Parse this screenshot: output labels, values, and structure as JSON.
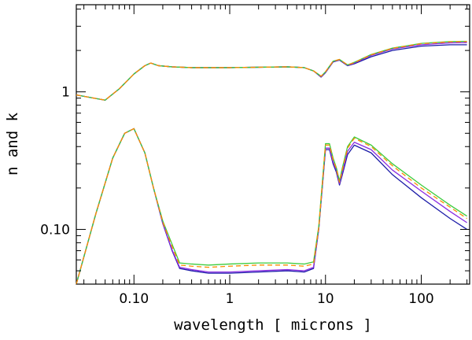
{
  "chart_data": {
    "type": "line",
    "title": "",
    "xlabel": "wavelength [ microns ]",
    "ylabel": "n and k",
    "xscale": "log",
    "yscale": "log",
    "xlim": [
      0.025,
      320
    ],
    "ylim": [
      0.04,
      4.3
    ],
    "x_ticks": [
      {
        "value": 0.1,
        "label": "0.10"
      },
      {
        "value": 1,
        "label": "1"
      },
      {
        "value": 10,
        "label": "10"
      },
      {
        "value": 100,
        "label": "100"
      }
    ],
    "y_ticks": [
      {
        "value": 0.1,
        "label": "0.10"
      },
      {
        "value": 1,
        "label": "1"
      }
    ],
    "grid": false,
    "legend": "none",
    "colors": {
      "navy": "#1c1ca8",
      "purple": "#8a2be2",
      "green": "#3ccc3c",
      "orange": "#ff8c00",
      "axis": "#000000"
    },
    "series": [
      {
        "name": "n (navy)",
        "color": "navy",
        "style": "solid",
        "x": [
          0.025,
          0.05,
          0.07,
          0.1,
          0.13,
          0.15,
          0.18,
          0.25,
          0.4,
          0.7,
          1,
          2,
          4,
          6,
          7.5,
          9,
          10,
          12,
          14,
          17,
          20,
          30,
          50,
          100,
          200,
          300
        ],
        "y": [
          0.95,
          0.87,
          1.05,
          1.35,
          1.55,
          1.62,
          1.55,
          1.52,
          1.5,
          1.5,
          1.5,
          1.51,
          1.52,
          1.5,
          1.42,
          1.28,
          1.38,
          1.65,
          1.7,
          1.55,
          1.6,
          1.8,
          2.0,
          2.15,
          2.2,
          2.2
        ]
      },
      {
        "name": "n (purple)",
        "color": "purple",
        "style": "solid",
        "x": [
          0.025,
          0.05,
          0.07,
          0.1,
          0.13,
          0.15,
          0.18,
          0.25,
          0.4,
          0.7,
          1,
          2,
          4,
          6,
          7.5,
          9,
          10,
          12,
          14,
          17,
          20,
          30,
          50,
          100,
          200,
          300
        ],
        "y": [
          0.95,
          0.87,
          1.05,
          1.35,
          1.55,
          1.62,
          1.55,
          1.52,
          1.5,
          1.5,
          1.5,
          1.51,
          1.52,
          1.5,
          1.42,
          1.29,
          1.39,
          1.66,
          1.71,
          1.56,
          1.62,
          1.84,
          2.05,
          2.2,
          2.27,
          2.28
        ]
      },
      {
        "name": "n (green)",
        "color": "green",
        "style": "solid",
        "x": [
          0.025,
          0.05,
          0.07,
          0.1,
          0.13,
          0.15,
          0.18,
          0.25,
          0.4,
          0.7,
          1,
          2,
          4,
          6,
          7.5,
          9,
          10,
          12,
          14,
          17,
          20,
          30,
          50,
          100,
          200,
          300
        ],
        "y": [
          0.95,
          0.87,
          1.05,
          1.35,
          1.55,
          1.62,
          1.55,
          1.52,
          1.5,
          1.5,
          1.5,
          1.51,
          1.52,
          1.5,
          1.42,
          1.3,
          1.4,
          1.67,
          1.72,
          1.57,
          1.64,
          1.87,
          2.08,
          2.25,
          2.32,
          2.33
        ]
      },
      {
        "name": "n (orange dashed)",
        "color": "orange",
        "style": "dashed",
        "x": [
          0.025,
          0.05,
          0.07,
          0.1,
          0.13,
          0.15,
          0.18,
          0.25,
          0.4,
          0.7,
          1,
          2,
          4,
          6,
          7.5,
          9,
          10,
          12,
          14,
          17,
          20,
          30,
          50,
          100,
          200,
          300
        ],
        "y": [
          0.95,
          0.87,
          1.05,
          1.35,
          1.55,
          1.62,
          1.55,
          1.52,
          1.5,
          1.5,
          1.5,
          1.51,
          1.52,
          1.5,
          1.42,
          1.3,
          1.4,
          1.67,
          1.72,
          1.57,
          1.63,
          1.86,
          2.07,
          2.24,
          2.31,
          2.32
        ]
      },
      {
        "name": "k (navy)",
        "color": "navy",
        "style": "solid",
        "x": [
          0.025,
          0.04,
          0.06,
          0.08,
          0.1,
          0.13,
          0.16,
          0.2,
          0.25,
          0.3,
          0.4,
          0.6,
          1,
          2,
          4,
          6,
          7.5,
          8.5,
          10,
          11,
          12,
          13,
          14,
          15,
          17,
          20,
          30,
          50,
          100,
          200,
          300
        ],
        "y": [
          0.04,
          0.13,
          0.33,
          0.5,
          0.54,
          0.36,
          0.2,
          0.11,
          0.07,
          0.052,
          0.05,
          0.048,
          0.048,
          0.049,
          0.05,
          0.049,
          0.052,
          0.1,
          0.38,
          0.38,
          0.3,
          0.26,
          0.21,
          0.25,
          0.35,
          0.41,
          0.36,
          0.25,
          0.17,
          0.12,
          0.1
        ]
      },
      {
        "name": "k (purple)",
        "color": "purple",
        "style": "solid",
        "x": [
          0.025,
          0.04,
          0.06,
          0.08,
          0.1,
          0.13,
          0.16,
          0.2,
          0.25,
          0.3,
          0.4,
          0.6,
          1,
          2,
          4,
          6,
          7.5,
          8.5,
          10,
          11,
          12,
          13,
          14,
          15,
          17,
          20,
          30,
          50,
          100,
          200,
          300
        ],
        "y": [
          0.04,
          0.13,
          0.33,
          0.5,
          0.54,
          0.36,
          0.2,
          0.111,
          0.071,
          0.053,
          0.051,
          0.049,
          0.049,
          0.05,
          0.051,
          0.05,
          0.053,
          0.101,
          0.39,
          0.39,
          0.31,
          0.27,
          0.215,
          0.26,
          0.37,
          0.43,
          0.38,
          0.27,
          0.19,
          0.135,
          0.112
        ]
      },
      {
        "name": "k (green)",
        "color": "green",
        "style": "solid",
        "x": [
          0.025,
          0.04,
          0.06,
          0.08,
          0.1,
          0.13,
          0.16,
          0.2,
          0.25,
          0.3,
          0.4,
          0.6,
          1,
          2,
          4,
          6,
          7.5,
          8.5,
          10,
          11,
          12,
          13,
          14,
          15,
          17,
          20,
          30,
          50,
          100,
          200,
          300
        ],
        "y": [
          0.04,
          0.13,
          0.33,
          0.5,
          0.54,
          0.36,
          0.2,
          0.115,
          0.078,
          0.057,
          0.056,
          0.055,
          0.056,
          0.057,
          0.057,
          0.056,
          0.058,
          0.105,
          0.42,
          0.42,
          0.33,
          0.28,
          0.225,
          0.28,
          0.4,
          0.47,
          0.41,
          0.3,
          0.21,
          0.15,
          0.125
        ]
      },
      {
        "name": "k (orange dashed)",
        "color": "orange",
        "style": "dashed",
        "x": [
          0.025,
          0.04,
          0.06,
          0.08,
          0.1,
          0.13,
          0.16,
          0.2,
          0.25,
          0.3,
          0.4,
          0.6,
          1,
          2,
          4,
          6,
          7.5,
          8.5,
          10,
          11,
          12,
          13,
          14,
          15,
          17,
          20,
          30,
          50,
          100,
          200,
          300
        ],
        "y": [
          0.04,
          0.13,
          0.33,
          0.5,
          0.54,
          0.36,
          0.2,
          0.113,
          0.075,
          0.055,
          0.054,
          0.053,
          0.054,
          0.055,
          0.055,
          0.054,
          0.056,
          0.103,
          0.41,
          0.41,
          0.32,
          0.275,
          0.22,
          0.27,
          0.39,
          0.46,
          0.4,
          0.29,
          0.2,
          0.145,
          0.12
        ]
      }
    ]
  }
}
